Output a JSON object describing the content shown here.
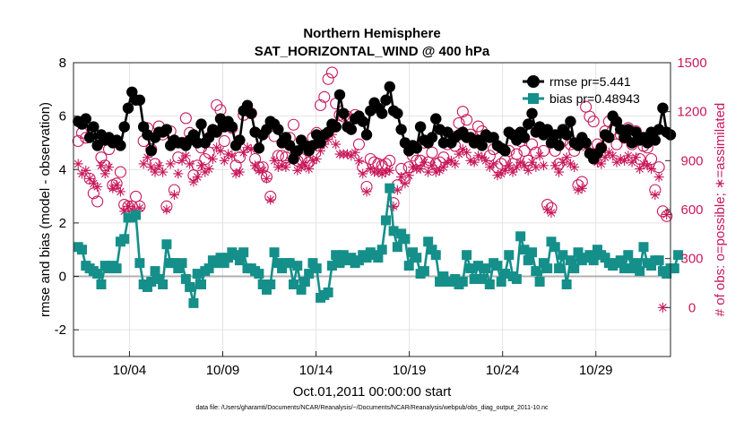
{
  "chart_data": {
    "type": "line",
    "title": "Northern Hemisphere",
    "subtitle": "SAT_HORIZONTAL_WIND @ 400 hPa",
    "xlabel": "Oct.01,2011 00:00:00 start",
    "ylabel": "rmse and bias (model - observation)",
    "y2label": "# of obs: o=possible; ∗=assimilated",
    "footer": "data file: /Users/gharamti/Documents/NCAR/Reanalysis/~/Documents/NCAR/Reanalysis/webpub/obs_diag_output_2011-10.nc",
    "xlim": [
      1,
      33
    ],
    "ylim": [
      -3,
      8
    ],
    "y2lim": [
      -300,
      1500
    ],
    "x_ticks": [
      4,
      9,
      14,
      19,
      24,
      29
    ],
    "x_tick_labels": [
      "10/04",
      "10/09",
      "10/14",
      "10/19",
      "10/24",
      "10/29"
    ],
    "y_ticks": [
      -2,
      0,
      2,
      4,
      6,
      8
    ],
    "y_tick_labels": [
      "-2",
      "0",
      "2",
      "4",
      "6",
      "8"
    ],
    "y2_ticks": [
      0,
      300,
      600,
      900,
      1200,
      1500
    ],
    "y2_tick_labels": [
      "0",
      "300",
      "600",
      "900",
      "1200",
      "1500"
    ],
    "grid": true,
    "legend_position": "top-right",
    "colors": {
      "rmse": "#000000",
      "bias": "#158f8a",
      "obs": "#c8185a",
      "zero_line": "#b0b0b0"
    },
    "series": [
      {
        "name": "rmse pr=5.441",
        "marker": "circle",
        "values": [
          5.8,
          5.7,
          5.9,
          5.2,
          5.6,
          4.9,
          5.3,
          5.1,
          5.2,
          5.0,
          5.1,
          4.9,
          5.6,
          6.3,
          6.9,
          6.6,
          6.6,
          5.6,
          5.3,
          4.7,
          5.2,
          5.4,
          5.4,
          5.5,
          4.9,
          5.1,
          5.0,
          5.0,
          4.9,
          5.1,
          5.3,
          5.0,
          5.7,
          5.0,
          5.2,
          5.5,
          5.4,
          5.9,
          5.6,
          5.8,
          5.6,
          4.9,
          5.1,
          6.2,
          6.4,
          6.1,
          5.4,
          4.8,
          5.3,
          5.5,
          5.8,
          5.7,
          5.5,
          5.0,
          5.2,
          4.9,
          4.4,
          4.7,
          5.1,
          4.9,
          4.7,
          4.9,
          5.3,
          5.0,
          5.3,
          5.4,
          5.7,
          5.6,
          6.8,
          6.1,
          5.6,
          5.5,
          5.9,
          6.0,
          5.8,
          5.3,
          6.2,
          6.5,
          6.3,
          6.1,
          6.6,
          7.1,
          6.2,
          6.1,
          5.5,
          5.0,
          4.7,
          4.9,
          4.8,
          5.6,
          5.1,
          5.0,
          5.2,
          5.9,
          5.5,
          5.0,
          5.4,
          5.0,
          5.2,
          5.3,
          5.4,
          5.2,
          5.2,
          5.0,
          5.1,
          4.9,
          5.3,
          5.2,
          5.2,
          4.9,
          4.8,
          4.7,
          5.4,
          5.3,
          5.1,
          5.4,
          5.2,
          5.7,
          6.1,
          5.4,
          5.6,
          5.3,
          5.5,
          5.0,
          5.3,
          4.9,
          5.5,
          5.3,
          5.8,
          5.0,
          4.9,
          5.2,
          5.0,
          4.6,
          4.4,
          4.6,
          4.8,
          5.3,
          5.2,
          6.0,
          5.8,
          5.5,
          5.2,
          5.5,
          5.0,
          5.4,
          5.1,
          5.2,
          5.0,
          5.4,
          5.1,
          5.5,
          6.3,
          5.4,
          5.3
        ]
      },
      {
        "name": "bias pr=0.48943",
        "marker": "square",
        "values": [
          1.1,
          1.0,
          0.4,
          0.3,
          0.2,
          0.1,
          -0.3,
          0.4,
          0.3,
          0.4,
          0.3,
          1.3,
          1.4,
          2.2,
          2.2,
          2.3,
          0.5,
          -0.3,
          -0.4,
          -0.2,
          0.2,
          -0.1,
          -0.3,
          1.2,
          0.5,
          0.5,
          0.3,
          0.5,
          -0.1,
          -0.4,
          -1.0,
          0.1,
          -0.3,
          0.2,
          0.3,
          0.6,
          0.5,
          0.7,
          0.5,
          0.7,
          0.9,
          0.8,
          0.6,
          0.9,
          0.3,
          0.3,
          0.2,
          0.1,
          -0.3,
          -0.5,
          -0.3,
          0.9,
          0.5,
          0.3,
          0.5,
          0.5,
          -0.3,
          0.4,
          -0.5,
          -0.2,
          0.1,
          0.5,
          0.3,
          -0.8,
          -0.7,
          -0.6,
          0.4,
          0.8,
          0.5,
          0.8,
          0.6,
          0.7,
          0.5,
          0.6,
          0.8,
          0.7,
          0.9,
          0.8,
          0.7,
          1.0,
          2.1,
          3.3,
          1.7,
          1.1,
          1.6,
          1.4,
          0.4,
          0.9,
          0.7,
          0.1,
          0.2,
          1.3,
          1.0,
          0.8,
          -0.2,
          0.0,
          -0.2,
          -0.2,
          -0.1,
          -0.3,
          -0.2,
          0.8,
          0.3,
          -0.1,
          0.4,
          -0.1,
          0.3,
          -0.3,
          0.5,
          0.4,
          -0.2,
          0.1,
          0.8,
          0.0,
          -0.1,
          1.5,
          1.0,
          0.6,
          0.9,
          0.2,
          -0.2,
          0.5,
          0.3,
          1.3,
          1.1,
          0.3,
          0.8,
          -0.3,
          0.6,
          0.3,
          0.9,
          0.6,
          0.7,
          0.8,
          0.6,
          1.0,
          0.8,
          0.7,
          0.5,
          0.4,
          0.5,
          0.6,
          0.3,
          0.8,
          0.3,
          0.5,
          0.2,
          1.1,
          0.5,
          0.4,
          0.6,
          0.6,
          0.2,
          0.1,
          0.3,
          0.3,
          0.8
        ]
      }
    ],
    "obs_possible": [
      1020,
      1070,
      1040,
      790,
      700,
      650,
      920,
      870,
      970,
      750,
      760,
      830,
      630,
      620,
      620,
      680,
      620,
      1020,
      1100,
      970,
      880,
      1110,
      1060,
      620,
      1080,
      720,
      920,
      1010,
      1160,
      1070,
      810,
      870,
      980,
      910,
      950,
      1080,
      1240,
      1210,
      1020,
      1120,
      1100,
      870,
      920,
      1180,
      1210,
      1190,
      910,
      860,
      860,
      800,
      680,
      1050,
      930,
      930,
      920,
      1040,
      1120,
      900,
      910,
      920,
      890,
      1040,
      1070,
      1240,
      1290,
      1400,
      1440,
      1250,
      1180,
      1170,
      1170,
      1150,
      1180,
      1000,
      860,
      740,
      910,
      890,
      880,
      870,
      880,
      900,
      640,
      750,
      850,
      790,
      860,
      930,
      900,
      900,
      1010,
      890,
      950,
      880,
      890,
      920,
      1000,
      1050,
      990,
      1130,
      1200,
      1150,
      1060,
      1010,
      1110,
      1080,
      1050,
      930,
      970,
      860,
      880,
      900,
      960,
      880,
      940,
      1020,
      960,
      900,
      1000,
      950,
      1100,
      960,
      630,
      610,
      960,
      880,
      1020,
      1090,
      1000,
      960,
      750,
      770,
      1230,
      1170,
      1140,
      1000,
      980,
      1080,
      1140,
      1090,
      1000,
      1060,
      1040,
      1100,
      1000,
      1080,
      910,
      990,
      980,
      910,
      720,
      860,
      590,
      560
    ],
    "obs_assimilated": [
      880,
      820,
      840,
      790,
      760,
      740,
      870,
      820,
      860,
      730,
      750,
      710,
      590,
      620,
      600,
      560,
      610,
      880,
      920,
      860,
      830,
      870,
      830,
      600,
      880,
      690,
      820,
      900,
      930,
      880,
      770,
      800,
      870,
      830,
      850,
      910,
      980,
      960,
      900,
      940,
      930,
      820,
      830,
      950,
      980,
      970,
      870,
      840,
      840,
      790,
      660,
      900,
      860,
      870,
      860,
      900,
      930,
      840,
      860,
      870,
      850,
      900,
      910,
      960,
      1000,
      1030,
      1060,
      1000,
      940,
      940,
      940,
      930,
      950,
      900,
      820,
      710,
      850,
      830,
      830,
      820,
      830,
      840,
      620,
      720,
      800,
      760,
      810,
      860,
      850,
      850,
      890,
      830,
      870,
      830,
      840,
      860,
      890,
      900,
      880,
      940,
      970,
      950,
      900,
      890,
      930,
      920,
      900,
      860,
      880,
      810,
      820,
      840,
      870,
      830,
      860,
      890,
      870,
      840,
      890,
      860,
      930,
      870,
      600,
      580,
      870,
      830,
      890,
      920,
      880,
      860,
      720,
      730,
      980,
      960,
      950,
      890,
      880,
      920,
      950,
      930,
      890,
      910,
      900,
      930,
      890,
      920,
      850,
      880,
      870,
      850,
      690,
      800,
      0,
      570
    ]
  }
}
